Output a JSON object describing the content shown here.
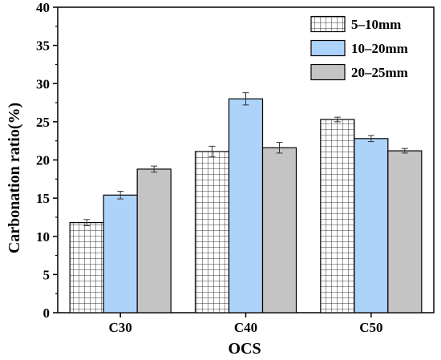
{
  "chart_data": {
    "type": "bar",
    "title": "",
    "xlabel": "OCS",
    "ylabel": "Carbonation ratio(%)",
    "categories": [
      "C30",
      "C40",
      "C50"
    ],
    "ylim": [
      0,
      40
    ],
    "yticks": [
      0,
      5,
      10,
      15,
      20,
      25,
      30,
      35,
      40
    ],
    "legend_position": "top-right",
    "grid": false,
    "series": [
      {
        "name": "5–10mm",
        "values": [
          11.8,
          21.1,
          25.3
        ],
        "errors": [
          0.4,
          0.7,
          0.3
        ],
        "fill": "#ffffff",
        "pattern": "grid"
      },
      {
        "name": "10–20mm",
        "values": [
          15.4,
          28.0,
          22.8
        ],
        "errors": [
          0.5,
          0.8,
          0.4
        ],
        "fill": "#aed3fb",
        "pattern": "none"
      },
      {
        "name": "20–25mm",
        "values": [
          18.8,
          21.6,
          21.2
        ],
        "errors": [
          0.4,
          0.7,
          0.3
        ],
        "fill": "#c4c4c4",
        "pattern": "none"
      }
    ]
  }
}
